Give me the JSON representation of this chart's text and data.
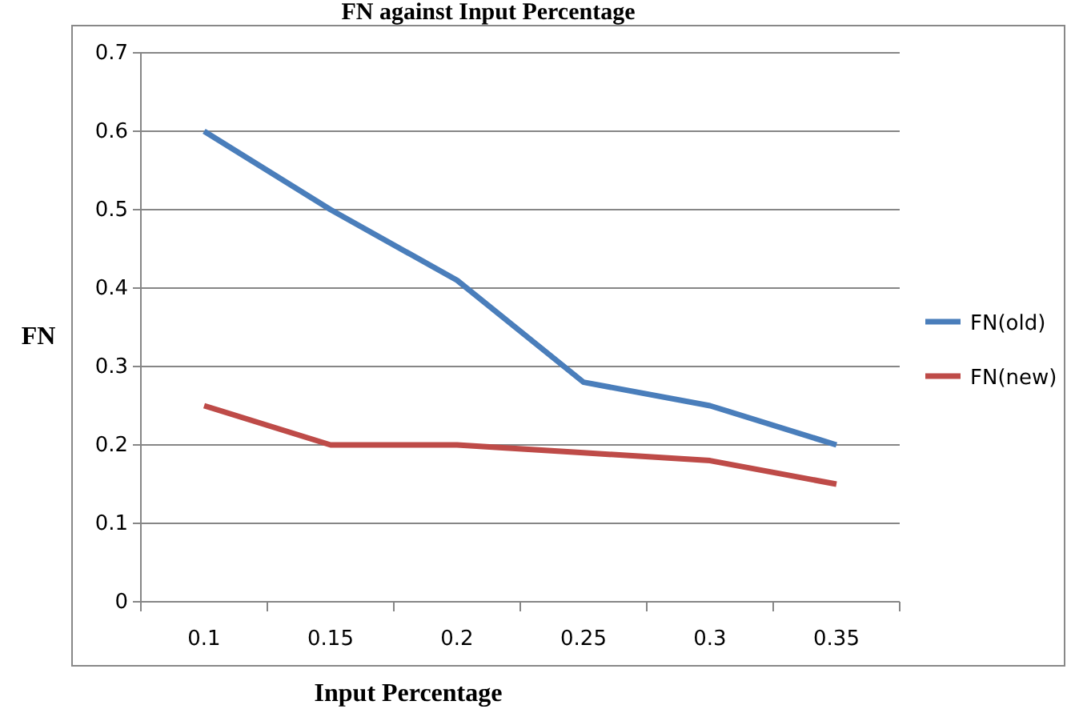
{
  "chart_data": {
    "type": "line",
    "title": "FN against Input Percentage",
    "xlabel": "Input Percentage",
    "ylabel": "FN",
    "categories": [
      "0.1",
      "0.15",
      "0.2",
      "0.25",
      "0.3",
      "0.35"
    ],
    "series": [
      {
        "name": "FN(old)",
        "color": "#4a7ebb",
        "values": [
          0.6,
          0.5,
          0.41,
          0.28,
          0.25,
          0.2
        ]
      },
      {
        "name": "FN(new)",
        "color": "#be4b48",
        "values": [
          0.25,
          0.2,
          0.2,
          0.19,
          0.18,
          0.15
        ]
      }
    ],
    "ylim": [
      0,
      0.7
    ],
    "yticks": [
      0,
      0.1,
      0.2,
      0.3,
      0.4,
      0.5,
      0.6,
      0.7
    ],
    "grid": "y",
    "legend": "right",
    "marker": "none",
    "line_style": "solid"
  }
}
